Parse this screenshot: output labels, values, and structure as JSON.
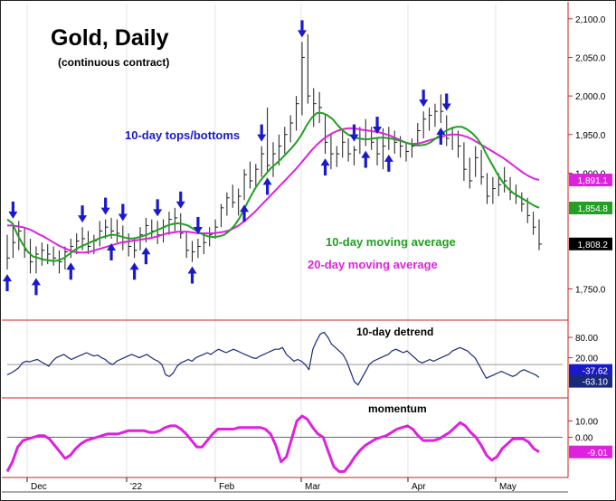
{
  "chart_data": {
    "type": "line",
    "title": "Gold, Daily",
    "subtitle": "(continuous contract)",
    "colors": {
      "price_bars": "#1a1a1a",
      "ma10": "#22a022",
      "ma20": "#dd22dd",
      "arrows": "#1a1acc",
      "detrend": "#1a2a7a",
      "momentum": "#dd22dd",
      "axis_red": "#cc2222",
      "ref_line": "#999999"
    },
    "annotations": {
      "cycle_label": "10-day tops/bottoms",
      "ma10_label": "10-day moving average",
      "ma20_label": "20-day moving average",
      "detrend_label": "10-day detrend",
      "momentum_label": "momentum"
    },
    "x_tick_labels": [
      "Dec",
      "'22",
      "Feb",
      "Mar",
      "Apr",
      "May"
    ],
    "price_panel": {
      "y_ticks": [
        "2,100.0",
        "2,050.0",
        "2,000.0",
        "1,950.0",
        "1,900.0",
        "1,750.0"
      ],
      "ylim": [
        1720,
        2115
      ],
      "value_boxes": [
        {
          "label": "1,891.1",
          "value": 1891.1,
          "color": "#dd22dd"
        },
        {
          "label": "1,854.8",
          "value": 1854.8,
          "color": "#22a022"
        },
        {
          "label": "1,808.2",
          "value": 1808.2,
          "color": "#000000"
        }
      ]
    },
    "detrend_panel": {
      "y_ticks": [
        "80.00",
        "20.00"
      ],
      "ylim": [
        -90,
        120
      ],
      "ref_value": 0,
      "value_boxes": [
        {
          "label": "-37.62",
          "value": -37.62,
          "color": "#1a1acc"
        },
        {
          "label": "-63.10",
          "value": -63.1,
          "color": "#1a2a7a"
        }
      ]
    },
    "momentum_panel": {
      "y_ticks": [
        "10.00",
        "0.00"
      ],
      "ylim": [
        -23,
        23
      ],
      "ref_value": 0,
      "value_boxes": [
        {
          "label": "-9.01",
          "value": -9.01,
          "color": "#dd22dd"
        }
      ]
    },
    "series": [
      {
        "name": "10-day moving average",
        "values": [
          1840,
          1835,
          1820,
          1808,
          1798,
          1792,
          1790,
          1788,
          1787,
          1786,
          1787,
          1790,
          1795,
          1800,
          1804,
          1807,
          1810,
          1813,
          1816,
          1818,
          1820,
          1820,
          1818,
          1816,
          1815,
          1816,
          1818,
          1820,
          1823,
          1826,
          1829,
          1832,
          1834,
          1835,
          1834,
          1832,
          1828,
          1824,
          1820,
          1818,
          1817,
          1818,
          1820,
          1825,
          1832,
          1842,
          1855,
          1868,
          1880,
          1890,
          1898,
          1906,
          1912,
          1918,
          1925,
          1932,
          1940,
          1950,
          1962,
          1972,
          1978,
          1978,
          1975,
          1970,
          1962,
          1955,
          1950,
          1947,
          1945,
          1944,
          1944,
          1945,
          1946,
          1946,
          1945,
          1944,
          1942,
          1940,
          1938,
          1936,
          1936,
          1937,
          1940,
          1945,
          1950,
          1955,
          1958,
          1960,
          1960,
          1957,
          1952,
          1945,
          1935,
          1922,
          1910,
          1898,
          1888,
          1880,
          1874,
          1870,
          1866,
          1862,
          1858,
          1855
        ]
      },
      {
        "name": "20-day moving average",
        "values": [
          1832,
          1832,
          1831,
          1830,
          1828,
          1825,
          1821,
          1818,
          1814,
          1810,
          1806,
          1803,
          1800,
          1798,
          1797,
          1797,
          1798,
          1800,
          1802,
          1804,
          1806,
          1808,
          1810,
          1811,
          1812,
          1813,
          1814,
          1815,
          1816,
          1818,
          1820,
          1822,
          1823,
          1824,
          1824,
          1824,
          1823,
          1822,
          1822,
          1822,
          1822,
          1823,
          1824,
          1826,
          1829,
          1833,
          1838,
          1844,
          1850,
          1857,
          1864,
          1871,
          1878,
          1885,
          1892,
          1899,
          1906,
          1914,
          1922,
          1930,
          1937,
          1943,
          1948,
          1952,
          1955,
          1957,
          1958,
          1958,
          1957,
          1956,
          1955,
          1954,
          1953,
          1951,
          1949,
          1946,
          1943,
          1940,
          1938,
          1938,
          1939,
          1941,
          1943,
          1945,
          1947,
          1949,
          1950,
          1950,
          1949,
          1947,
          1944,
          1940,
          1936,
          1932,
          1928,
          1924,
          1920,
          1915,
          1910,
          1905,
          1900,
          1896,
          1893,
          1891
        ]
      },
      {
        "name": "10-day detrend",
        "values": [
          -30,
          -25,
          -18,
          -10,
          5,
          10,
          8,
          12,
          15,
          8,
          2,
          -5,
          10,
          20,
          25,
          30,
          22,
          15,
          20,
          25,
          30,
          35,
          30,
          25,
          28,
          20,
          15,
          5,
          0,
          10,
          15,
          20,
          25,
          30,
          25,
          20,
          25,
          30,
          22,
          15,
          10,
          0,
          -30,
          -35,
          -25,
          -5,
          5,
          10,
          15,
          10,
          20,
          25,
          30,
          35,
          30,
          38,
          45,
          40,
          35,
          40,
          45,
          40,
          35,
          30,
          25,
          20,
          18,
          25,
          30,
          35,
          40,
          45,
          45,
          50,
          30,
          20,
          10,
          15,
          10,
          0,
          -15,
          45,
          70,
          90,
          95,
          80,
          60,
          50,
          40,
          30,
          10,
          -20,
          -50,
          -60,
          -40,
          -20,
          0,
          10,
          15,
          20,
          25,
          30,
          40,
          45,
          40,
          35,
          40,
          30,
          20,
          10,
          5,
          10,
          15,
          10,
          15,
          20,
          25,
          30,
          40,
          45,
          50,
          45,
          40,
          30,
          20,
          0,
          -20,
          -40,
          -35,
          -30,
          -25,
          -20,
          -25,
          -30,
          -35,
          -30,
          -20,
          -15,
          -20,
          -25,
          -30,
          -38
        ]
      },
      {
        "name": "momentum",
        "values": [
          -21,
          -15,
          -6,
          -2,
          -1,
          0,
          1,
          1,
          -1,
          -5,
          -9,
          -13,
          -11,
          -7,
          -4,
          -2,
          -1,
          0,
          1,
          2,
          2,
          2,
          3,
          4,
          4,
          4,
          4,
          3,
          3,
          4,
          6,
          7,
          7,
          5,
          2,
          -2,
          -6,
          -6,
          -2,
          2,
          5,
          5,
          5,
          5,
          6,
          6,
          6,
          6,
          6,
          5,
          2,
          -5,
          -15,
          -12,
          -1,
          10,
          13,
          11,
          6,
          2,
          0,
          -9,
          -18,
          -21,
          -21,
          -17,
          -12,
          -8,
          -5,
          -3,
          -1,
          0,
          1,
          3,
          5,
          6,
          7,
          5,
          1,
          -2,
          -2,
          -2,
          -1,
          1,
          3,
          6,
          9,
          7,
          3,
          0,
          -5,
          -11,
          -14,
          -12,
          -7,
          -4,
          -1,
          -1,
          -1,
          -3,
          -7,
          -9
        ]
      }
    ],
    "price_bars": [
      {
        "h": 1820,
        "l": 1775,
        "c": 1790
      },
      {
        "h": 1835,
        "l": 1790,
        "c": 1810
      },
      {
        "h": 1838,
        "l": 1800,
        "c": 1825
      },
      {
        "h": 1830,
        "l": 1790,
        "c": 1800
      },
      {
        "h": 1815,
        "l": 1770,
        "c": 1785
      },
      {
        "h": 1805,
        "l": 1770,
        "c": 1795
      },
      {
        "h": 1810,
        "l": 1780,
        "c": 1800
      },
      {
        "h": 1808,
        "l": 1782,
        "c": 1795
      },
      {
        "h": 1805,
        "l": 1780,
        "c": 1790
      },
      {
        "h": 1800,
        "l": 1770,
        "c": 1785
      },
      {
        "h": 1805,
        "l": 1775,
        "c": 1798
      },
      {
        "h": 1815,
        "l": 1790,
        "c": 1805
      },
      {
        "h": 1822,
        "l": 1795,
        "c": 1812
      },
      {
        "h": 1830,
        "l": 1800,
        "c": 1815
      },
      {
        "h": 1825,
        "l": 1795,
        "c": 1805
      },
      {
        "h": 1820,
        "l": 1795,
        "c": 1812
      },
      {
        "h": 1838,
        "l": 1805,
        "c": 1825
      },
      {
        "h": 1840,
        "l": 1815,
        "c": 1830
      },
      {
        "h": 1842,
        "l": 1815,
        "c": 1825
      },
      {
        "h": 1840,
        "l": 1810,
        "c": 1822
      },
      {
        "h": 1832,
        "l": 1800,
        "c": 1810
      },
      {
        "h": 1822,
        "l": 1792,
        "c": 1805
      },
      {
        "h": 1815,
        "l": 1790,
        "c": 1800
      },
      {
        "h": 1830,
        "l": 1800,
        "c": 1820
      },
      {
        "h": 1842,
        "l": 1810,
        "c": 1832
      },
      {
        "h": 1840,
        "l": 1815,
        "c": 1825
      },
      {
        "h": 1838,
        "l": 1808,
        "c": 1820
      },
      {
        "h": 1840,
        "l": 1810,
        "c": 1830
      },
      {
        "h": 1850,
        "l": 1820,
        "c": 1840
      },
      {
        "h": 1855,
        "l": 1825,
        "c": 1842
      },
      {
        "h": 1848,
        "l": 1815,
        "c": 1822
      },
      {
        "h": 1825,
        "l": 1790,
        "c": 1800
      },
      {
        "h": 1812,
        "l": 1785,
        "c": 1798
      },
      {
        "h": 1815,
        "l": 1790,
        "c": 1805
      },
      {
        "h": 1822,
        "l": 1795,
        "c": 1810
      },
      {
        "h": 1830,
        "l": 1805,
        "c": 1820
      },
      {
        "h": 1840,
        "l": 1815,
        "c": 1830
      },
      {
        "h": 1860,
        "l": 1830,
        "c": 1855
      },
      {
        "h": 1875,
        "l": 1845,
        "c": 1868
      },
      {
        "h": 1885,
        "l": 1855,
        "c": 1862
      },
      {
        "h": 1880,
        "l": 1845,
        "c": 1870
      },
      {
        "h": 1905,
        "l": 1865,
        "c": 1898
      },
      {
        "h": 1915,
        "l": 1880,
        "c": 1890
      },
      {
        "h": 1912,
        "l": 1880,
        "c": 1905
      },
      {
        "h": 1935,
        "l": 1895,
        "c": 1925
      },
      {
        "h": 1985,
        "l": 1900,
        "c": 1910
      },
      {
        "h": 1940,
        "l": 1895,
        "c": 1925
      },
      {
        "h": 1950,
        "l": 1910,
        "c": 1935
      },
      {
        "h": 1960,
        "l": 1925,
        "c": 1950
      },
      {
        "h": 1975,
        "l": 1940,
        "c": 1965
      },
      {
        "h": 2000,
        "l": 1955,
        "c": 1990
      },
      {
        "h": 2070,
        "l": 1975,
        "c": 2050
      },
      {
        "h": 2080,
        "l": 1990,
        "c": 2000
      },
      {
        "h": 2010,
        "l": 1960,
        "c": 1990
      },
      {
        "h": 2005,
        "l": 1965,
        "c": 1985
      },
      {
        "h": 1975,
        "l": 1925,
        "c": 1940
      },
      {
        "h": 1950,
        "l": 1905,
        "c": 1925
      },
      {
        "h": 1935,
        "l": 1908,
        "c": 1925
      },
      {
        "h": 1955,
        "l": 1920,
        "c": 1940
      },
      {
        "h": 1945,
        "l": 1915,
        "c": 1925
      },
      {
        "h": 1935,
        "l": 1910,
        "c": 1930
      },
      {
        "h": 1960,
        "l": 1925,
        "c": 1945
      },
      {
        "h": 1970,
        "l": 1935,
        "c": 1955
      },
      {
        "h": 1960,
        "l": 1930,
        "c": 1940
      },
      {
        "h": 1945,
        "l": 1910,
        "c": 1925
      },
      {
        "h": 1958,
        "l": 1905,
        "c": 1935
      },
      {
        "h": 1960,
        "l": 1930,
        "c": 1945
      },
      {
        "h": 1955,
        "l": 1925,
        "c": 1940
      },
      {
        "h": 1948,
        "l": 1920,
        "c": 1935
      },
      {
        "h": 1940,
        "l": 1915,
        "c": 1928
      },
      {
        "h": 1945,
        "l": 1920,
        "c": 1935
      },
      {
        "h": 1965,
        "l": 1935,
        "c": 1955
      },
      {
        "h": 1980,
        "l": 1945,
        "c": 1970
      },
      {
        "h": 1985,
        "l": 1955,
        "c": 1975
      },
      {
        "h": 1990,
        "l": 1960,
        "c": 1980
      },
      {
        "h": 2002,
        "l": 1965,
        "c": 1980
      },
      {
        "h": 1975,
        "l": 1935,
        "c": 1945
      },
      {
        "h": 1960,
        "l": 1930,
        "c": 1950
      },
      {
        "h": 1955,
        "l": 1920,
        "c": 1935
      },
      {
        "h": 1940,
        "l": 1890,
        "c": 1905
      },
      {
        "h": 1920,
        "l": 1880,
        "c": 1890
      },
      {
        "h": 1935,
        "l": 1895,
        "c": 1920
      },
      {
        "h": 1930,
        "l": 1885,
        "c": 1895
      },
      {
        "h": 1900,
        "l": 1860,
        "c": 1870
      },
      {
        "h": 1895,
        "l": 1860,
        "c": 1880
      },
      {
        "h": 1900,
        "l": 1870,
        "c": 1885
      },
      {
        "h": 1908,
        "l": 1875,
        "c": 1890
      },
      {
        "h": 1895,
        "l": 1865,
        "c": 1875
      },
      {
        "h": 1885,
        "l": 1860,
        "c": 1870
      },
      {
        "h": 1875,
        "l": 1850,
        "c": 1860
      },
      {
        "h": 1868,
        "l": 1835,
        "c": 1845
      },
      {
        "h": 1850,
        "l": 1820,
        "c": 1830
      },
      {
        "h": 1840,
        "l": 1800,
        "c": 1808
      }
    ],
    "arrows": [
      {
        "dir": "down",
        "bar": 1
      },
      {
        "dir": "up",
        "bar": 0
      },
      {
        "dir": "up",
        "bar": 5
      },
      {
        "dir": "up",
        "bar": 11
      },
      {
        "dir": "down",
        "bar": 13
      },
      {
        "dir": "up",
        "bar": 18
      },
      {
        "dir": "down",
        "bar": 17
      },
      {
        "dir": "down",
        "bar": 20
      },
      {
        "dir": "up",
        "bar": 22
      },
      {
        "dir": "down",
        "bar": 26
      },
      {
        "dir": "up",
        "bar": 24
      },
      {
        "dir": "down",
        "bar": 30
      },
      {
        "dir": "up",
        "bar": 32
      },
      {
        "dir": "down",
        "bar": 33
      },
      {
        "dir": "up",
        "bar": 41
      },
      {
        "dir": "down",
        "bar": 44
      },
      {
        "dir": "up",
        "bar": 45
      },
      {
        "dir": "down",
        "bar": 51
      },
      {
        "dir": "up",
        "bar": 55
      },
      {
        "dir": "down",
        "bar": 60
      },
      {
        "dir": "up",
        "bar": 62
      },
      {
        "dir": "down",
        "bar": 64
      },
      {
        "dir": "up",
        "bar": 66
      },
      {
        "dir": "down",
        "bar": 72
      },
      {
        "dir": "down",
        "bar": 76
      },
      {
        "dir": "up",
        "bar": 75
      }
    ]
  }
}
